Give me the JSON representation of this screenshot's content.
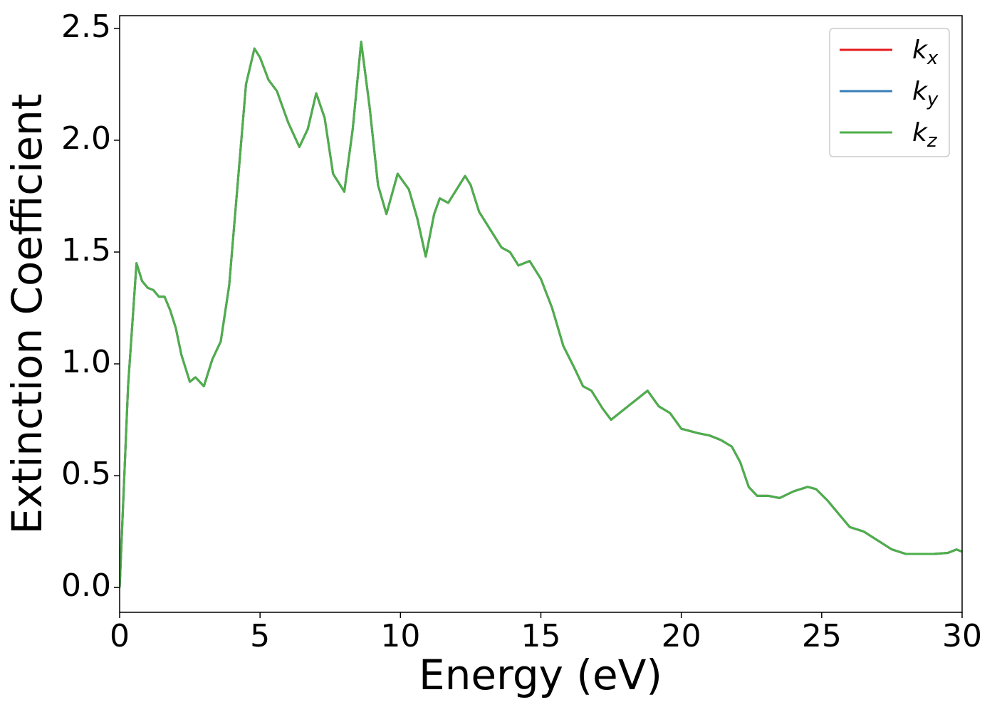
{
  "chart_data": {
    "type": "line",
    "xlabel": "Energy (eV)",
    "ylabel": "Extinction Coefficient",
    "x": [
      0,
      0.3,
      0.6,
      0.8,
      1.0,
      1.2,
      1.4,
      1.6,
      1.8,
      2.0,
      2.2,
      2.5,
      2.7,
      3.0,
      3.3,
      3.6,
      3.9,
      4.2,
      4.5,
      4.8,
      5.0,
      5.3,
      5.6,
      6.0,
      6.4,
      6.7,
      7.0,
      7.3,
      7.6,
      8.0,
      8.3,
      8.6,
      8.9,
      9.2,
      9.5,
      9.9,
      10.3,
      10.6,
      10.9,
      11.2,
      11.4,
      11.7,
      12.0,
      12.3,
      12.5,
      12.8,
      13.2,
      13.6,
      13.9,
      14.2,
      14.6,
      15.0,
      15.4,
      15.8,
      16.2,
      16.5,
      16.8,
      17.2,
      17.5,
      18.0,
      18.4,
      18.8,
      19.2,
      19.6,
      20.0,
      20.6,
      21.0,
      21.4,
      21.8,
      22.1,
      22.4,
      22.7,
      23.1,
      23.5,
      24.0,
      24.5,
      24.8,
      25.2,
      25.6,
      26.0,
      26.5,
      27.0,
      27.5,
      28.0,
      28.5,
      29.0,
      29.5,
      29.8,
      30
    ],
    "series": [
      {
        "name": "kx",
        "color": "#e41a1c",
        "values": [
          0.0,
          0.9,
          1.45,
          1.37,
          1.34,
          1.33,
          1.3,
          1.3,
          1.24,
          1.16,
          1.04,
          0.92,
          0.94,
          0.9,
          1.02,
          1.1,
          1.35,
          1.8,
          2.25,
          2.41,
          2.37,
          2.27,
          2.22,
          2.08,
          1.97,
          2.05,
          2.21,
          2.1,
          1.85,
          1.77,
          2.05,
          2.44,
          2.15,
          1.8,
          1.67,
          1.85,
          1.78,
          1.65,
          1.48,
          1.67,
          1.74,
          1.72,
          1.78,
          1.84,
          1.8,
          1.68,
          1.6,
          1.52,
          1.5,
          1.44,
          1.46,
          1.38,
          1.25,
          1.08,
          0.98,
          0.9,
          0.88,
          0.8,
          0.75,
          0.8,
          0.84,
          0.88,
          0.81,
          0.78,
          0.71,
          0.69,
          0.68,
          0.66,
          0.63,
          0.56,
          0.45,
          0.41,
          0.41,
          0.4,
          0.43,
          0.45,
          0.44,
          0.39,
          0.33,
          0.27,
          0.25,
          0.21,
          0.17,
          0.15,
          0.15,
          0.15,
          0.155,
          0.17,
          0.16
        ]
      },
      {
        "name": "ky",
        "color": "#377eb8",
        "values": [
          0.0,
          0.9,
          1.45,
          1.37,
          1.34,
          1.33,
          1.3,
          1.3,
          1.24,
          1.16,
          1.04,
          0.92,
          0.94,
          0.9,
          1.02,
          1.1,
          1.35,
          1.8,
          2.25,
          2.41,
          2.37,
          2.27,
          2.22,
          2.08,
          1.97,
          2.05,
          2.21,
          2.1,
          1.85,
          1.77,
          2.05,
          2.44,
          2.15,
          1.8,
          1.67,
          1.85,
          1.78,
          1.65,
          1.48,
          1.67,
          1.74,
          1.72,
          1.78,
          1.84,
          1.8,
          1.68,
          1.6,
          1.52,
          1.5,
          1.44,
          1.46,
          1.38,
          1.25,
          1.08,
          0.98,
          0.9,
          0.88,
          0.8,
          0.75,
          0.8,
          0.84,
          0.88,
          0.81,
          0.78,
          0.71,
          0.69,
          0.68,
          0.66,
          0.63,
          0.56,
          0.45,
          0.41,
          0.41,
          0.4,
          0.43,
          0.45,
          0.44,
          0.39,
          0.33,
          0.27,
          0.25,
          0.21,
          0.17,
          0.15,
          0.15,
          0.15,
          0.155,
          0.17,
          0.16
        ]
      },
      {
        "name": "kz",
        "color": "#4daf4a",
        "values": [
          0.0,
          0.9,
          1.45,
          1.37,
          1.34,
          1.33,
          1.3,
          1.3,
          1.24,
          1.16,
          1.04,
          0.92,
          0.94,
          0.9,
          1.02,
          1.1,
          1.35,
          1.8,
          2.25,
          2.41,
          2.37,
          2.27,
          2.22,
          2.08,
          1.97,
          2.05,
          2.21,
          2.1,
          1.85,
          1.77,
          2.05,
          2.44,
          2.15,
          1.8,
          1.67,
          1.85,
          1.78,
          1.65,
          1.48,
          1.67,
          1.74,
          1.72,
          1.78,
          1.84,
          1.8,
          1.68,
          1.6,
          1.52,
          1.5,
          1.44,
          1.46,
          1.38,
          1.25,
          1.08,
          0.98,
          0.9,
          0.88,
          0.8,
          0.75,
          0.8,
          0.84,
          0.88,
          0.81,
          0.78,
          0.71,
          0.69,
          0.68,
          0.66,
          0.63,
          0.56,
          0.45,
          0.41,
          0.41,
          0.4,
          0.43,
          0.45,
          0.44,
          0.39,
          0.33,
          0.27,
          0.25,
          0.21,
          0.17,
          0.15,
          0.15,
          0.15,
          0.155,
          0.17,
          0.16
        ]
      }
    ],
    "xlim": [
      0,
      30
    ],
    "xticks": [
      0,
      5,
      10,
      15,
      20,
      25,
      30
    ],
    "ylim": [
      -0.111,
      2.557
    ],
    "yticks": [
      {
        "value": 0,
        "label": "0.0"
      },
      0.5,
      {
        "value": 1,
        "label": "1.0"
      },
      1.5,
      {
        "value": 2,
        "label": "2.0"
      },
      2.5
    ],
    "grid": false,
    "legend": "upper right"
  }
}
